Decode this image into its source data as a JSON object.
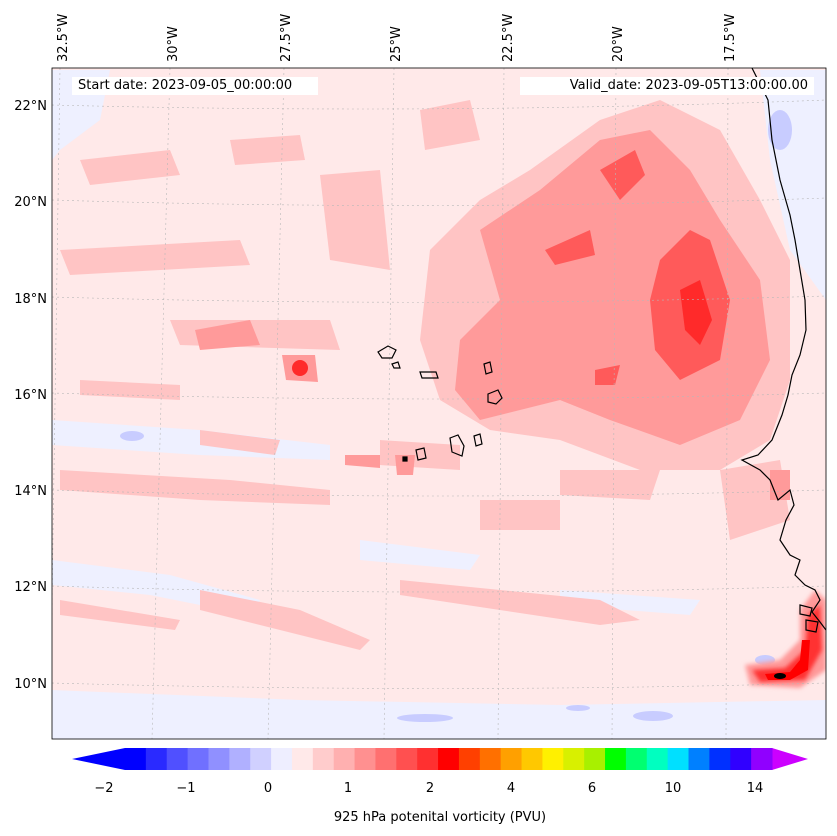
{
  "header": {
    "start_date": "Start date: 2023-09-05_00:00:00",
    "valid_date": "Valid_date: 2023-09-05T13:00:00.00"
  },
  "map": {
    "longitude_labels": [
      "32.5°W",
      "30°W",
      "27.5°W",
      "25°W",
      "22.5°W",
      "20°W",
      "17.5°W"
    ],
    "latitude_labels": [
      "22°N",
      "20°N",
      "18°N",
      "16°N",
      "14°N",
      "12°N",
      "10°N"
    ],
    "field": "925 hPa potenital vorticity",
    "colors": {
      "background_pv_near_zero": "#ffe9e9",
      "weak_positive": "#ffc4c4",
      "moderate_positive": "#ff9a9a",
      "strong_positive": "#ff5a5a",
      "peak_positive": "#ff2a2a",
      "weak_negative": "#eef0ff",
      "negative": "#c8ccff",
      "coastline": "#000000"
    }
  },
  "colorbar": {
    "label": "925 hPa potenital vorticity (PVU)",
    "tick_labels": [
      "−2",
      "−1",
      "0",
      "1",
      "2",
      "4",
      "6",
      "10",
      "14"
    ],
    "colors": [
      "#0000ff",
      "#2a2aff",
      "#5050ff",
      "#7070ff",
      "#9090ff",
      "#b0b0ff",
      "#d0d0ff",
      "#eeeeff",
      "#ffe9e9",
      "#ffcccc",
      "#ffb0b0",
      "#ff9090",
      "#ff7070",
      "#ff5050",
      "#ff3030",
      "#ff0000",
      "#ff4000",
      "#ff7000",
      "#ffa000",
      "#ffc800",
      "#fff000",
      "#d8f000",
      "#a8f000",
      "#00ff00",
      "#00ff70",
      "#00ffc0",
      "#00e0ff",
      "#0080ff",
      "#0030ff",
      "#3000ff",
      "#9000ff"
    ],
    "extend_low_color": "#0000ff",
    "extend_high_color": "#cc00ff"
  }
}
